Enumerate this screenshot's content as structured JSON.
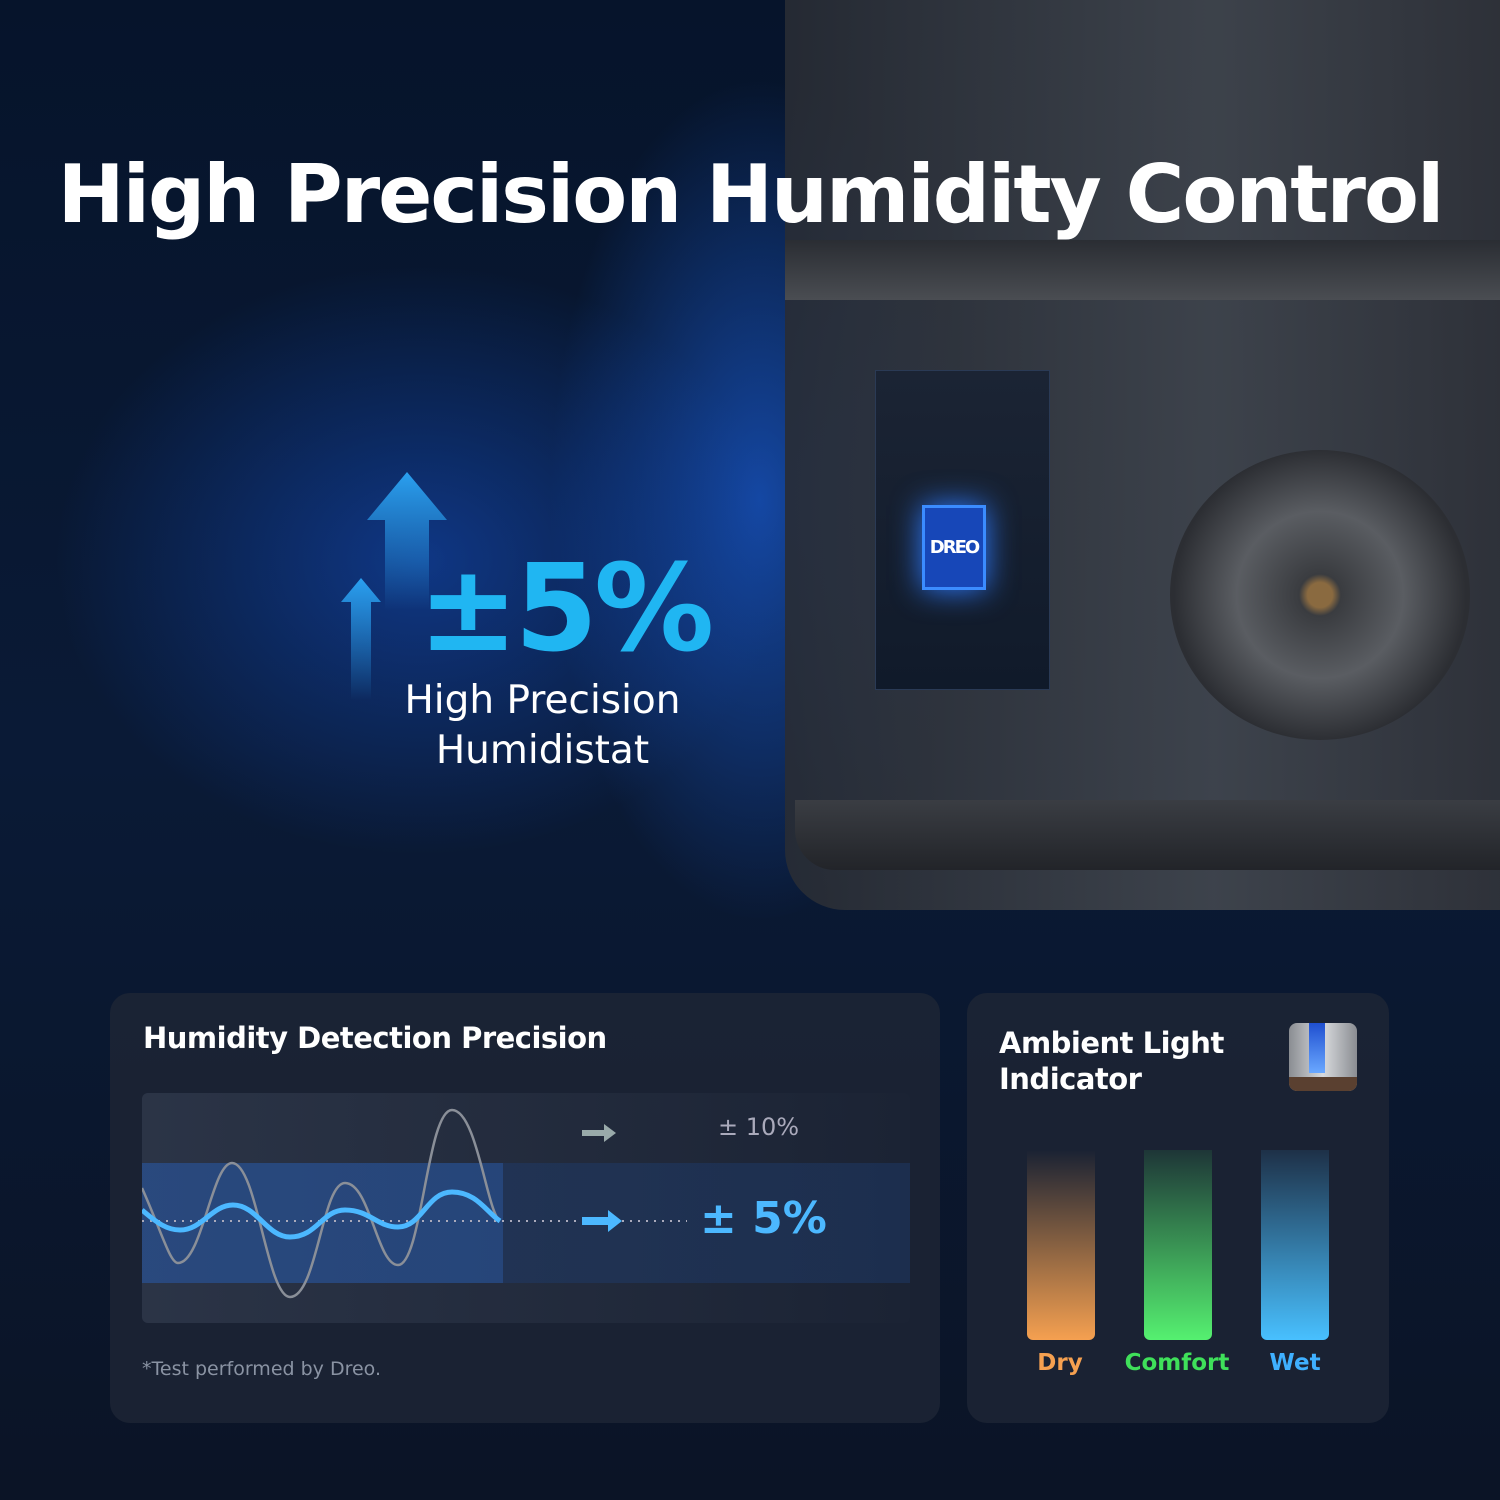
{
  "headline": "High Precision Humidity Control",
  "badge": {
    "value": "±5%",
    "label_line1": "High Precision",
    "label_line2": "Humidistat"
  },
  "chip_logo": "DREO",
  "precision_card": {
    "title": "Humidity Detection Precision",
    "other_label": "± 10%",
    "dreo_label": "± 5%",
    "footnote": "*Test performed by Dreo.",
    "accent": "#4cb8ff"
  },
  "ambient_card": {
    "title_line1": "Ambient Light",
    "title_line2": "Indicator",
    "levels": [
      {
        "label": "Dry",
        "color": "#f5a050"
      },
      {
        "label": "Comfort",
        "color": "#3fe05a"
      },
      {
        "label": "Wet",
        "color": "#3fb0ff"
      }
    ]
  }
}
